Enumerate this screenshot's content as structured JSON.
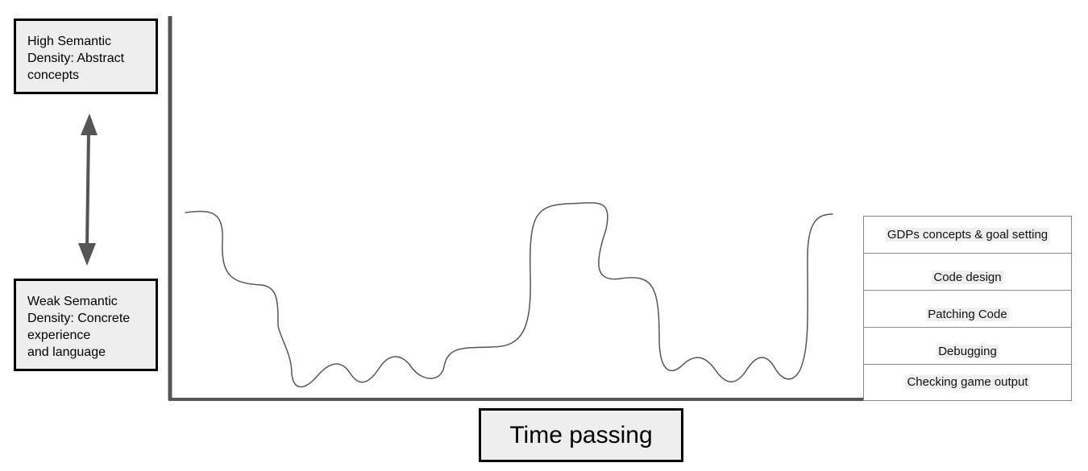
{
  "labels": {
    "high": "High Semantic\nDensity: Abstract\nconcepts",
    "weak": "Weak Semantic\nDensity: Concrete\nexperience\nand language",
    "time": "Time passing"
  },
  "legend": {
    "items": [
      "GDPs concepts & goal setting",
      "Code design",
      "Patching Code",
      "Debugging",
      "Checking game output"
    ]
  },
  "colors": {
    "axis": "#555555",
    "arrow": "#555555",
    "wave": "#555555",
    "box_fill": "#eeeeee",
    "box_border": "#000000"
  }
}
